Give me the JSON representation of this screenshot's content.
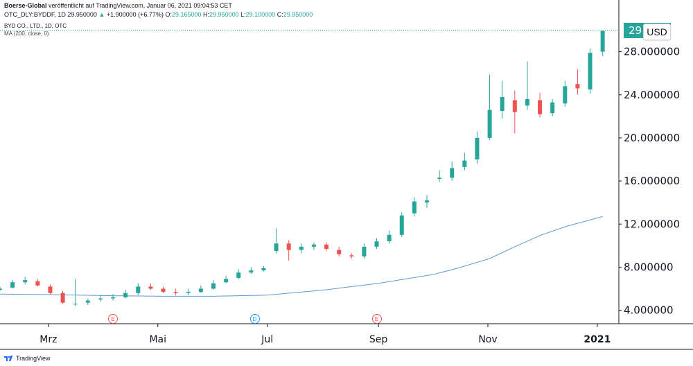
{
  "header": {
    "line1_author": "Boerse-Global",
    "line1_rest": "veröffentlicht auf TradingView.com, Januar 06, 2021 09:04:53 CET",
    "symbol": "OTC_DLY:BYDDF, 1D",
    "last": "29.950000",
    "change": "+1.900000 (+6.77%)",
    "o_label": "O:",
    "o_value": "29.165000",
    "h_label": "H:",
    "h_value": "29.950000",
    "l_label": "L:",
    "l_value": "29.100000",
    "c_label": "C:",
    "c_value": "29.950000"
  },
  "legend": {
    "series_title": "BYD CO., LTD., 1D, OTC",
    "indicator": "MA (200, close, 0)"
  },
  "price_badge": "29.950000",
  "currency": "USD",
  "footer": {
    "brand": "TradingView"
  },
  "colors": {
    "up": "#26a69a",
    "down": "#ef5350",
    "ma": "#5b9bd5",
    "grid": "#e0e3eb"
  },
  "events": [
    {
      "label": "E",
      "kind": "earnings",
      "date": "2020-04-06"
    },
    {
      "label": "D",
      "kind": "dividend",
      "date": "2020-06-24"
    },
    {
      "label": "E",
      "kind": "earnings",
      "date": "2020-08-31"
    }
  ],
  "chart_data": {
    "type": "candlestick",
    "title": "BYD CO., LTD., 1D, OTC",
    "x_tick_labels": [
      "Mrz",
      "Mai",
      "Jul",
      "Sep",
      "Nov",
      "2021"
    ],
    "x_tick_dates": [
      "2020-03-01",
      "2020-05-01",
      "2020-07-01",
      "2020-09-01",
      "2020-11-01",
      "2021-01-01"
    ],
    "xlim": [
      "2020-02-03",
      "2021-01-08"
    ],
    "y_ticks": [
      "4.000000",
      "8.000000",
      "12.000000",
      "16.000000",
      "20.000000",
      "24.000000",
      "28.000000"
    ],
    "ylim": [
      2.75,
      31.0
    ],
    "last_price": 29.95,
    "series": [
      {
        "name": "BYD CO., LTD.",
        "dates": [
          "2020-02-03",
          "2020-02-10",
          "2020-02-17",
          "2020-02-24",
          "2020-03-02",
          "2020-03-09",
          "2020-03-16",
          "2020-03-23",
          "2020-03-30",
          "2020-04-06",
          "2020-04-13",
          "2020-04-20",
          "2020-04-27",
          "2020-05-04",
          "2020-05-11",
          "2020-05-18",
          "2020-05-25",
          "2020-06-01",
          "2020-06-08",
          "2020-06-15",
          "2020-06-22",
          "2020-06-29",
          "2020-07-06",
          "2020-07-13",
          "2020-07-20",
          "2020-07-27",
          "2020-08-03",
          "2020-08-10",
          "2020-08-17",
          "2020-08-24",
          "2020-08-31",
          "2020-09-07",
          "2020-09-14",
          "2020-09-21",
          "2020-09-28",
          "2020-10-05",
          "2020-10-12",
          "2020-10-19",
          "2020-10-26",
          "2020-11-02",
          "2020-11-09",
          "2020-11-16",
          "2020-11-23",
          "2020-11-30",
          "2020-12-07",
          "2020-12-14",
          "2020-12-21",
          "2020-12-28",
          "2021-01-04"
        ],
        "open": [
          5.9,
          6.1,
          6.6,
          6.7,
          6.2,
          5.6,
          4.6,
          4.7,
          5.0,
          5.1,
          5.2,
          5.6,
          6.2,
          6.0,
          5.7,
          5.6,
          5.7,
          6.0,
          6.6,
          7.0,
          7.5,
          7.7,
          9.5,
          10.2,
          9.6,
          9.9,
          10.1,
          9.6,
          9.1,
          9.0,
          9.9,
          10.4,
          11.0,
          13.0,
          14.0,
          16.2,
          16.3,
          17.3,
          18.0,
          20.0,
          22.5,
          23.5,
          23.0,
          23.5,
          22.3,
          23.2,
          25.0,
          24.5,
          28.0
        ],
        "close": [
          6.0,
          6.6,
          6.8,
          6.3,
          5.6,
          4.7,
          4.6,
          4.9,
          5.1,
          5.2,
          5.6,
          6.2,
          6.0,
          5.7,
          5.6,
          5.7,
          6.0,
          6.5,
          6.9,
          7.5,
          7.7,
          7.9,
          10.2,
          9.6,
          9.9,
          10.1,
          9.7,
          9.2,
          9.0,
          9.9,
          10.4,
          11.0,
          12.8,
          14.1,
          14.2,
          16.3,
          17.2,
          17.9,
          20.0,
          22.6,
          23.8,
          22.4,
          23.6,
          22.2,
          23.3,
          24.8,
          24.6,
          27.9,
          29.95
        ],
        "high": [
          6.2,
          6.8,
          7.1,
          6.9,
          6.4,
          5.8,
          6.9,
          5.1,
          5.4,
          5.5,
          5.9,
          6.5,
          6.5,
          6.2,
          6.0,
          6.0,
          6.3,
          6.8,
          7.2,
          7.8,
          8.0,
          8.1,
          11.6,
          10.5,
          10.2,
          10.3,
          10.3,
          9.9,
          9.3,
          10.2,
          10.7,
          11.4,
          13.1,
          14.5,
          14.7,
          17.0,
          17.8,
          18.6,
          20.6,
          25.9,
          25.3,
          24.4,
          27.1,
          24.2,
          23.6,
          25.3,
          26.4,
          28.3,
          29.95
        ],
        "low": [
          5.8,
          6.0,
          6.4,
          6.2,
          5.5,
          4.6,
          4.4,
          4.5,
          4.8,
          4.9,
          5.1,
          5.4,
          5.9,
          5.6,
          5.4,
          5.4,
          5.6,
          5.9,
          6.5,
          6.9,
          7.4,
          7.6,
          9.3,
          8.6,
          9.3,
          9.6,
          9.5,
          9.0,
          8.8,
          8.8,
          9.7,
          10.2,
          10.8,
          12.7,
          13.5,
          15.9,
          16.0,
          17.0,
          17.6,
          19.8,
          21.8,
          20.4,
          22.6,
          21.9,
          22.0,
          22.9,
          24.0,
          24.1,
          27.6
        ]
      },
      {
        "name": "MA (200, close, 0)",
        "dates": [
          "2020-02-03",
          "2020-03-02",
          "2020-04-06",
          "2020-05-04",
          "2020-06-01",
          "2020-07-01",
          "2020-08-03",
          "2020-09-01",
          "2020-10-01",
          "2020-10-15",
          "2020-11-02",
          "2020-11-16",
          "2020-12-01",
          "2020-12-15",
          "2021-01-04"
        ],
        "values": [
          5.5,
          5.45,
          5.35,
          5.3,
          5.3,
          5.4,
          5.9,
          6.5,
          7.3,
          7.9,
          8.8,
          9.9,
          11.0,
          11.8,
          12.7
        ]
      }
    ],
    "grid": false,
    "legend_position": "top-left"
  }
}
